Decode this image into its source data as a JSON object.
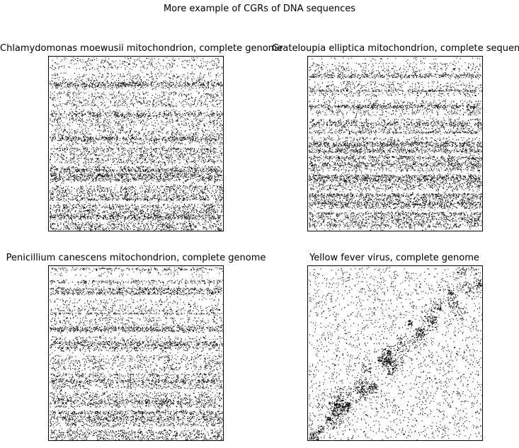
{
  "figure": {
    "title": "More example of CGRs of DNA sequences"
  },
  "chart_data": [
    {
      "type": "scatter",
      "title": "Chlamydomonas moewusii mitochondrion, complete genome",
      "xlim": [
        0,
        1
      ],
      "ylim": [
        0,
        1
      ],
      "ticks": "none",
      "grid": false,
      "marker_color": "#000000",
      "pattern": "horizontal-bands",
      "density_top": 0.35,
      "density_bottom": 1.0,
      "points_approx": 9000
    },
    {
      "type": "scatter",
      "title": "Grateloupia elliptica mitochondrion, complete sequence",
      "xlim": [
        0,
        1
      ],
      "ylim": [
        0,
        1
      ],
      "ticks": "none",
      "grid": false,
      "marker_color": "#000000",
      "pattern": "horizontal-bands",
      "density_top": 0.3,
      "density_bottom": 1.0,
      "points_approx": 9500
    },
    {
      "type": "scatter",
      "title": "Penicillium canescens mitochondrion, complete genome",
      "xlim": [
        0,
        1
      ],
      "ylim": [
        0,
        1
      ],
      "ticks": "none",
      "grid": false,
      "marker_color": "#000000",
      "pattern": "horizontal-bands",
      "density_top": 0.15,
      "density_bottom": 1.0,
      "points_approx": 8000
    },
    {
      "type": "scatter",
      "title": "Yellow fever virus, complete genome",
      "xlim": [
        0,
        1
      ],
      "ylim": [
        0,
        1
      ],
      "ticks": "none",
      "grid": false,
      "marker_color": "#000000",
      "pattern": "diagonal-cluster",
      "points_approx": 4200
    }
  ]
}
